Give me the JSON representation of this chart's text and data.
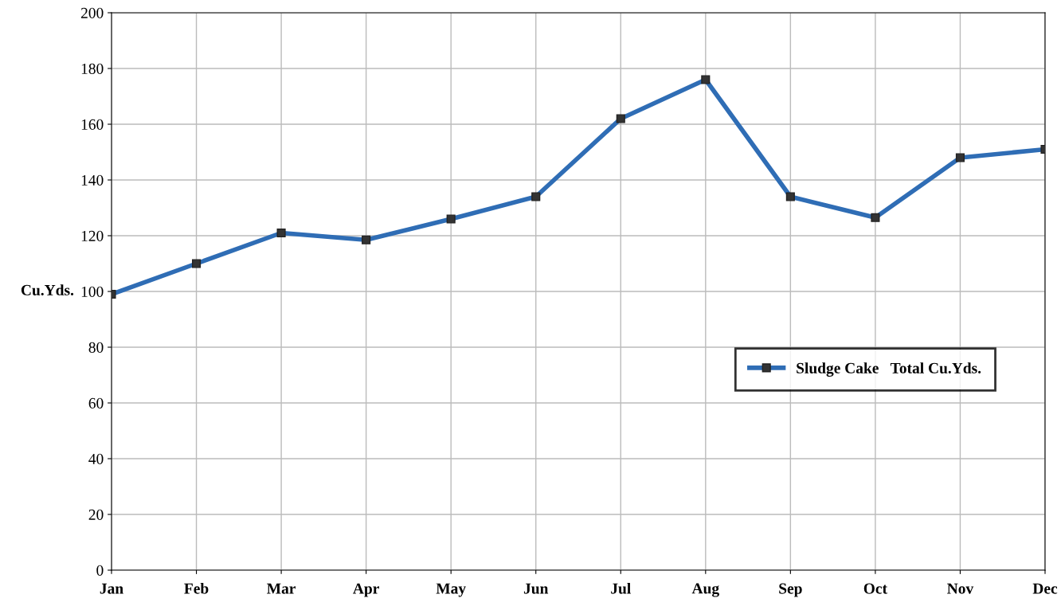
{
  "chart_data": {
    "type": "line",
    "ylabel": "Cu.Yds.",
    "categories": [
      "Jan",
      "Feb",
      "Mar",
      "Apr",
      "May",
      "Jun",
      "Jul",
      "Aug",
      "Sep",
      "Oct",
      "Nov",
      "Dec"
    ],
    "series": [
      {
        "name": "Sludge Cake   Total Cu.Yds.",
        "color": "#2f6db5",
        "values": [
          99,
          110,
          121,
          118.5,
          126,
          134,
          162,
          176,
          134,
          126.5,
          148,
          151
        ]
      }
    ],
    "ylim": [
      0,
      200
    ],
    "yticks": [
      0,
      20,
      40,
      60,
      80,
      100,
      120,
      140,
      160,
      180,
      200
    ],
    "grid": true,
    "legend": "right",
    "marker": "square",
    "line_style": "solid"
  }
}
